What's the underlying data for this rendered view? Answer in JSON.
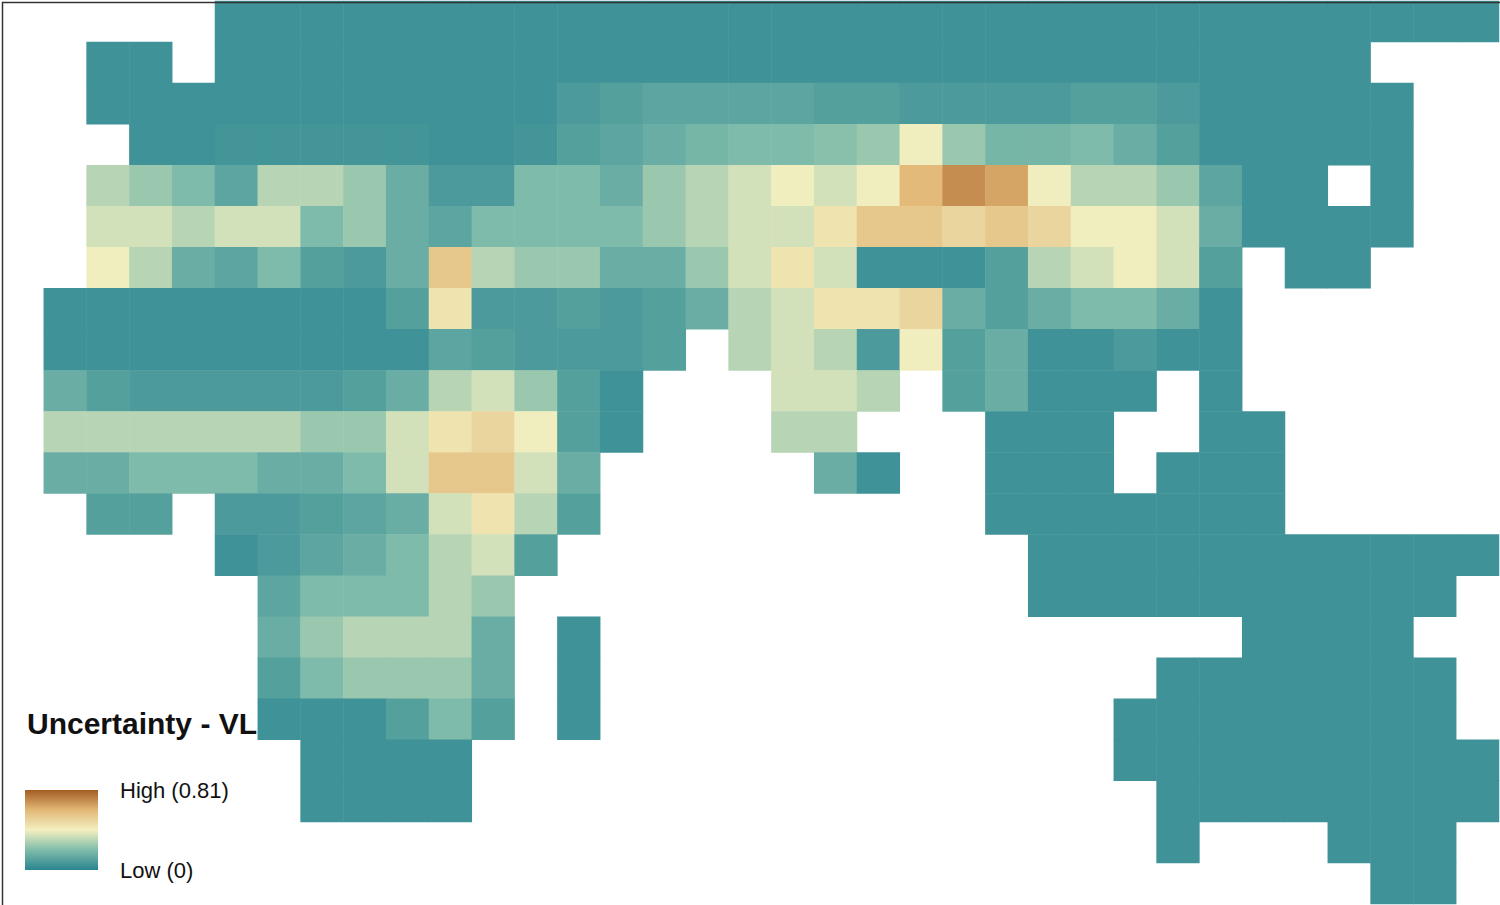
{
  "chart_data": {
    "type": "heatmap",
    "title": "Uncertainty - VL",
    "x": [
      -17.5,
      -12.5,
      -7.5,
      -2.5,
      2.5,
      7.5,
      12.5,
      17.5,
      22.5,
      27.5,
      32.5,
      37.5,
      42.5,
      47.5,
      52.5,
      57.5,
      62.5,
      67.5,
      72.5,
      77.5,
      82.5,
      87.5,
      92.5,
      97.5,
      102.5,
      107.5,
      112.5,
      117.5,
      122.5,
      127.5,
      132.5,
      137.5,
      142.5,
      147.5,
      152.5
    ],
    "y": [
      62.5,
      57.5,
      52.5,
      47.5,
      42.5,
      37.5,
      32.5,
      27.5,
      22.5,
      17.5,
      12.5,
      7.5,
      2.5,
      -2.5,
      -7.5,
      -12.5,
      -17.5,
      -22.5,
      -27.5,
      -32.5,
      -37.5,
      -42.5
    ],
    "values": [
      [
        null,
        null,
        null,
        null,
        null,
        0.05,
        0.05,
        0.05,
        0.05,
        0.05,
        0.05,
        0.05,
        0.05,
        0.05,
        0.05,
        0.05,
        0.05,
        0.05,
        0.05,
        0.05,
        0.05,
        0.05,
        0.05,
        0.05,
        0.05,
        0.05,
        0.05,
        0.05,
        0.05,
        0.05,
        0.05,
        0.05,
        0.05,
        0.05,
        0.05
      ],
      [
        null,
        null,
        0.05,
        0.05,
        null,
        0.05,
        0.05,
        0.05,
        0.05,
        0.05,
        0.05,
        0.05,
        0.05,
        0.05,
        0.05,
        0.05,
        0.05,
        0.05,
        0.05,
        0.05,
        0.05,
        0.05,
        0.05,
        0.05,
        0.05,
        0.05,
        0.05,
        0.05,
        0.05,
        0.05,
        0.05,
        0.05,
        null,
        null,
        null
      ],
      [
        null,
        null,
        0.05,
        0.05,
        0.05,
        0.05,
        0.05,
        0.05,
        0.05,
        0.05,
        0.05,
        0.05,
        0.05,
        0.08,
        0.1,
        0.12,
        0.12,
        0.12,
        0.12,
        0.1,
        0.1,
        0.08,
        0.08,
        0.08,
        0.08,
        0.1,
        0.1,
        0.08,
        0.05,
        0.05,
        0.05,
        0.05,
        0.05,
        null,
        null
      ],
      [
        null,
        null,
        null,
        0.05,
        0.05,
        0.06,
        0.06,
        0.06,
        0.06,
        0.06,
        0.05,
        0.05,
        0.06,
        0.1,
        0.12,
        0.15,
        0.18,
        0.2,
        0.2,
        0.22,
        0.25,
        0.4,
        0.25,
        0.18,
        0.18,
        0.2,
        0.15,
        0.1,
        0.05,
        0.05,
        0.05,
        0.05,
        0.05,
        null,
        null
      ],
      [
        null,
        null,
        0.3,
        0.25,
        0.2,
        0.12,
        0.3,
        0.3,
        0.25,
        0.15,
        0.08,
        0.08,
        0.2,
        0.2,
        0.15,
        0.25,
        0.3,
        0.35,
        0.4,
        0.35,
        0.4,
        0.6,
        0.7,
        0.65,
        0.4,
        0.3,
        0.3,
        0.25,
        0.12,
        0.05,
        0.05,
        null,
        0.05,
        null,
        null
      ],
      [
        null,
        null,
        0.35,
        0.35,
        0.3,
        0.35,
        0.35,
        0.2,
        0.25,
        0.15,
        0.12,
        0.2,
        0.2,
        0.2,
        0.2,
        0.25,
        0.3,
        0.35,
        0.35,
        0.45,
        0.55,
        0.55,
        0.5,
        0.55,
        0.5,
        0.4,
        0.4,
        0.35,
        0.15,
        0.05,
        0.05,
        0.05,
        0.05,
        null,
        null
      ],
      [
        null,
        null,
        0.4,
        0.3,
        0.15,
        0.12,
        0.2,
        0.1,
        0.08,
        0.15,
        0.55,
        0.3,
        0.25,
        0.25,
        0.15,
        0.15,
        0.25,
        0.35,
        0.45,
        0.35,
        0.05,
        0.05,
        0.05,
        0.1,
        0.3,
        0.35,
        0.4,
        0.35,
        0.1,
        null,
        0.05,
        0.05,
        null,
        null,
        null
      ],
      [
        null,
        0.05,
        0.05,
        0.05,
        0.05,
        0.05,
        0.05,
        0.05,
        0.05,
        0.1,
        0.45,
        0.08,
        0.08,
        0.1,
        0.08,
        0.1,
        0.15,
        0.3,
        0.35,
        0.45,
        0.45,
        0.5,
        0.15,
        0.1,
        0.15,
        0.2,
        0.2,
        0.15,
        0.05,
        null,
        null,
        null,
        null,
        null,
        null
      ],
      [
        null,
        0.05,
        0.05,
        0.05,
        0.05,
        0.05,
        0.05,
        0.05,
        0.05,
        0.05,
        0.12,
        0.1,
        0.08,
        0.08,
        0.08,
        0.1,
        null,
        0.3,
        0.35,
        0.3,
        0.08,
        0.4,
        0.1,
        0.15,
        0.05,
        0.05,
        0.08,
        0.05,
        0.05,
        null,
        null,
        null,
        null,
        null,
        null
      ],
      [
        null,
        0.15,
        0.1,
        0.08,
        0.08,
        0.08,
        0.08,
        0.08,
        0.1,
        0.15,
        0.3,
        0.35,
        0.25,
        0.1,
        0.05,
        null,
        null,
        null,
        0.35,
        0.35,
        0.3,
        null,
        0.1,
        0.15,
        0.05,
        0.05,
        0.05,
        null,
        0.05,
        null,
        null,
        null,
        null,
        null,
        null
      ],
      [
        null,
        0.3,
        0.3,
        0.3,
        0.3,
        0.3,
        0.3,
        0.25,
        0.25,
        0.35,
        0.45,
        0.5,
        0.4,
        0.1,
        0.05,
        null,
        null,
        null,
        0.3,
        0.3,
        null,
        null,
        null,
        0.05,
        0.05,
        0.05,
        null,
        null,
        0.05,
        0.05,
        null,
        null,
        null,
        null,
        null
      ],
      [
        null,
        0.15,
        0.15,
        0.2,
        0.2,
        0.2,
        0.15,
        0.15,
        0.2,
        0.35,
        0.55,
        0.55,
        0.35,
        0.15,
        null,
        null,
        null,
        null,
        null,
        0.15,
        0.05,
        null,
        null,
        0.05,
        0.05,
        0.05,
        null,
        0.05,
        0.05,
        0.05,
        null,
        null,
        null,
        null,
        null
      ],
      [
        null,
        null,
        0.1,
        0.1,
        null,
        0.08,
        0.08,
        0.1,
        0.12,
        0.15,
        0.35,
        0.45,
        0.3,
        0.1,
        null,
        null,
        null,
        null,
        null,
        null,
        null,
        null,
        null,
        0.05,
        0.05,
        0.05,
        0.05,
        0.05,
        0.05,
        0.05,
        null,
        null,
        null,
        null,
        null
      ],
      [
        null,
        null,
        null,
        null,
        null,
        0.05,
        0.08,
        0.12,
        0.15,
        0.2,
        0.3,
        0.35,
        0.1,
        null,
        null,
        null,
        null,
        null,
        null,
        null,
        null,
        null,
        null,
        null,
        0.05,
        0.05,
        0.05,
        0.05,
        0.05,
        0.05,
        0.05,
        0.05,
        0.05,
        0.05,
        0.05
      ],
      [
        null,
        null,
        null,
        null,
        null,
        null,
        0.12,
        0.2,
        0.2,
        0.2,
        0.3,
        0.25,
        null,
        null,
        null,
        null,
        null,
        null,
        null,
        null,
        null,
        null,
        null,
        null,
        0.05,
        0.05,
        0.05,
        0.05,
        0.05,
        0.05,
        0.05,
        0.05,
        0.05,
        0.05,
        null
      ],
      [
        null,
        null,
        null,
        null,
        null,
        null,
        0.15,
        0.25,
        0.3,
        0.3,
        0.3,
        0.15,
        null,
        0.05,
        null,
        null,
        null,
        null,
        null,
        null,
        null,
        null,
        null,
        null,
        null,
        null,
        null,
        null,
        null,
        0.05,
        0.05,
        0.05,
        0.05,
        null,
        null
      ],
      [
        null,
        null,
        null,
        null,
        null,
        null,
        0.1,
        0.2,
        0.25,
        0.25,
        0.25,
        0.15,
        null,
        0.05,
        null,
        null,
        null,
        null,
        null,
        null,
        null,
        null,
        null,
        null,
        null,
        null,
        null,
        0.05,
        0.05,
        0.05,
        0.05,
        0.05,
        0.05,
        0.05,
        null
      ],
      [
        null,
        null,
        null,
        null,
        null,
        null,
        0.05,
        0.05,
        0.05,
        0.1,
        0.2,
        0.1,
        null,
        0.05,
        null,
        null,
        null,
        null,
        null,
        null,
        null,
        null,
        null,
        null,
        null,
        null,
        0.05,
        0.05,
        0.05,
        0.05,
        0.05,
        0.05,
        0.05,
        0.05,
        null
      ],
      [
        null,
        null,
        null,
        null,
        null,
        null,
        null,
        0.05,
        0.05,
        0.05,
        0.05,
        null,
        null,
        null,
        null,
        null,
        null,
        null,
        null,
        null,
        null,
        null,
        null,
        null,
        null,
        null,
        0.05,
        0.05,
        0.05,
        0.05,
        0.05,
        0.05,
        0.05,
        0.05,
        0.05
      ],
      [
        null,
        null,
        null,
        null,
        null,
        null,
        null,
        0.05,
        0.05,
        0.05,
        0.05,
        null,
        null,
        null,
        null,
        null,
        null,
        null,
        null,
        null,
        null,
        null,
        null,
        null,
        null,
        null,
        null,
        0.05,
        0.05,
        0.05,
        0.05,
        0.05,
        0.05,
        0.05,
        0.05
      ],
      [
        null,
        null,
        null,
        null,
        null,
        null,
        null,
        null,
        null,
        null,
        null,
        null,
        null,
        null,
        null,
        null,
        null,
        null,
        null,
        null,
        null,
        null,
        null,
        null,
        null,
        null,
        null,
        0.05,
        null,
        null,
        null,
        0.05,
        0.05,
        0.05,
        null
      ],
      [
        null,
        null,
        null,
        null,
        null,
        null,
        null,
        null,
        null,
        null,
        null,
        null,
        null,
        null,
        null,
        null,
        null,
        null,
        null,
        null,
        null,
        null,
        null,
        null,
        null,
        null,
        null,
        null,
        null,
        null,
        null,
        null,
        0.05,
        0.05,
        null
      ]
    ],
    "colorbar_range": [
      0,
      0.81
    ],
    "colorbar_ticks": [
      {
        "value": 0,
        "label": "Low (0)"
      },
      {
        "value": 0.81,
        "label": "High (0.81)"
      }
    ],
    "tick_labels": false
  }
}
